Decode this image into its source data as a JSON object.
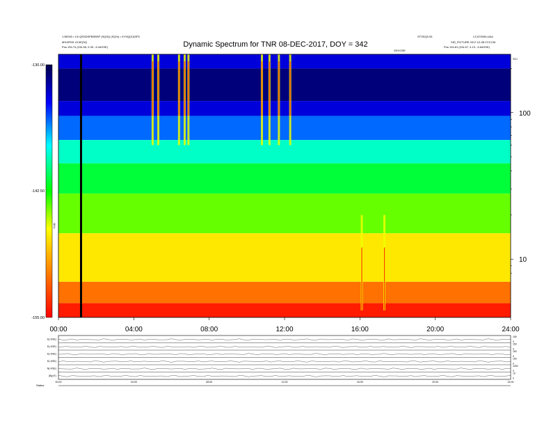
{
  "header": {
    "line1": "1.5E000 • 1/0 QSSDSPBSBSP (SQSQ (SQ%) • XYSQ(SJ)SPC",
    "line2": "MSJ/RSS ±3.0E(SQ",
    "left_info": "Pos    194.74 (194.55, 0.39, -5.44GSE)",
    "right_code": "STSSQ3.93",
    "right_stamp": "LS 870000-s3s1",
    "right_picture": "SID_PICTURE 2017-12-08 CCCCM",
    "right_info": "Pos    194.81 (194.67, 4.13, -5.64GSE)",
    "center_tag": "GEVOSE",
    "right_edge_tag": "SCI"
  },
  "colorbar": {
    "label": "TNR",
    "colors": [
      "#ff0000",
      "#ff6600",
      "#ffff00",
      "#00ff00",
      "#00ffff",
      "#0000ff",
      "#000066"
    ]
  },
  "chart_data": {
    "type": "heatmap",
    "title": "Dynamic Spectrum for TNR 08-DEC-2017, DOY = 342",
    "xlabel": "",
    "ylabel": "",
    "x_ticks": [
      "00:00",
      "04:00",
      "08:00",
      "12:00",
      "16:00",
      "20:00",
      "24:00"
    ],
    "x_range_hours": [
      0,
      24
    ],
    "y_ticks": [
      "100",
      "10"
    ],
    "y_scale": "log",
    "y_range_khz": [
      4,
      250
    ],
    "color_scale_ticks": [
      "-130.00",
      "-142.50",
      "-155.00"
    ],
    "color_range": [
      -155,
      -130
    ],
    "bands": [
      {
        "from": 200,
        "to": 250,
        "level": -133
      },
      {
        "from": 120,
        "to": 200,
        "level": -131
      },
      {
        "from": 95,
        "to": 120,
        "level": -133
      },
      {
        "from": 65,
        "to": 95,
        "level": -135.5
      },
      {
        "from": 45,
        "to": 65,
        "level": -139
      },
      {
        "from": 28,
        "to": 45,
        "level": -141.5
      },
      {
        "from": 15,
        "to": 28,
        "level": -144
      },
      {
        "from": 7,
        "to": 15,
        "level": -147
      },
      {
        "from": 5,
        "to": 7,
        "level": -151
      },
      {
        "from": 4,
        "to": 5,
        "level": -154
      }
    ],
    "data_gap_hours": 1.2,
    "bursts_hours": [
      5.0,
      5.3,
      6.4,
      6.7,
      6.9,
      10.8,
      11.2,
      11.7,
      12.3,
      16.1,
      17.3
    ],
    "panels": [
      {
        "label": "E(-KSE)",
        "right_ticks": [
          "150",
          "0"
        ]
      },
      {
        "label": "E(-KSE)",
        "right_ticks": [
          "150",
          "0"
        ]
      },
      {
        "label": "E(-KSE)",
        "right_ticks": [
          "150",
          "0"
        ]
      },
      {
        "label": "E(-KSE)",
        "right_ticks": [
          "150",
          "0"
        ]
      },
      {
        "label": "N(-KSE)",
        "right_ticks": [
          "1000",
          "0"
        ]
      },
      {
        "label": "|B|(nT)",
        "right_ticks": [
          "10",
          "0"
        ]
      }
    ],
    "panel_x_ticks": [
      "00:00",
      "04:00",
      "08:00",
      "12:00",
      "16:00",
      "20:00",
      "24:00"
    ],
    "footer_label": "Status"
  }
}
